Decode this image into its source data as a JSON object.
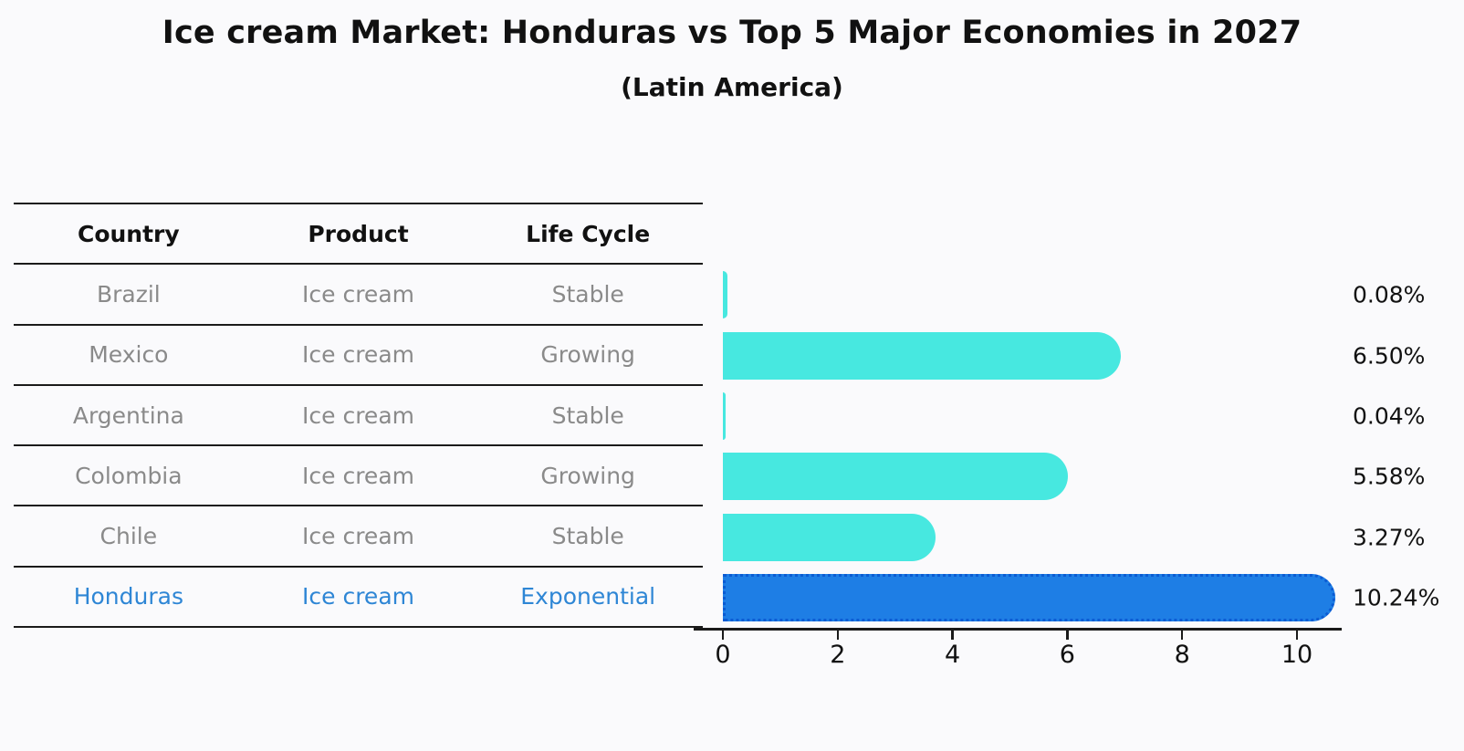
{
  "title": "Ice cream Market: Honduras vs Top 5 Major Economies in 2027",
  "subtitle": "(Latin America)",
  "table": {
    "headers": [
      "Country",
      "Product",
      "Life Cycle"
    ],
    "rows": [
      {
        "country": "Brazil",
        "product": "Ice cream",
        "life_cycle": "Stable",
        "highlight": false
      },
      {
        "country": "Mexico",
        "product": "Ice cream",
        "life_cycle": "Growing",
        "highlight": false
      },
      {
        "country": "Argentina",
        "product": "Ice cream",
        "life_cycle": "Stable",
        "highlight": false
      },
      {
        "country": "Colombia",
        "product": "Ice cream",
        "life_cycle": "Growing",
        "highlight": false
      },
      {
        "country": "Chile",
        "product": "Ice cream",
        "life_cycle": "Stable",
        "highlight": false
      },
      {
        "country": "Honduras",
        "product": "Ice cream",
        "life_cycle": "Exponential",
        "highlight": true
      }
    ]
  },
  "chart_data": {
    "type": "bar",
    "orientation": "horizontal",
    "title": "Ice cream Market: Honduras vs Top 5 Major Economies in 2027",
    "subtitle": "(Latin America)",
    "categories": [
      "Brazil",
      "Mexico",
      "Argentina",
      "Colombia",
      "Chile",
      "Honduras"
    ],
    "values": [
      0.08,
      6.5,
      0.04,
      5.58,
      3.27,
      10.24
    ],
    "value_labels": [
      "0.08%",
      "6.50%",
      "0.04%",
      "5.58%",
      "3.27%",
      "10.24%"
    ],
    "x_ticks": [
      0,
      2,
      4,
      6,
      8,
      10
    ],
    "xlim": [
      -0.5,
      10.75
    ],
    "xlabel": "",
    "ylabel": "",
    "grid": false,
    "legend": "none",
    "highlight_index": 5
  },
  "colors": {
    "bar": "#47e8e0",
    "highlight_bar": "#1e7ee5",
    "highlight_bar_edge": "#0b5bd3",
    "highlight_text": "#2e86d5",
    "text": "#111111",
    "muted_text": "#8a8a8a",
    "axis": "#1a1a1a"
  }
}
